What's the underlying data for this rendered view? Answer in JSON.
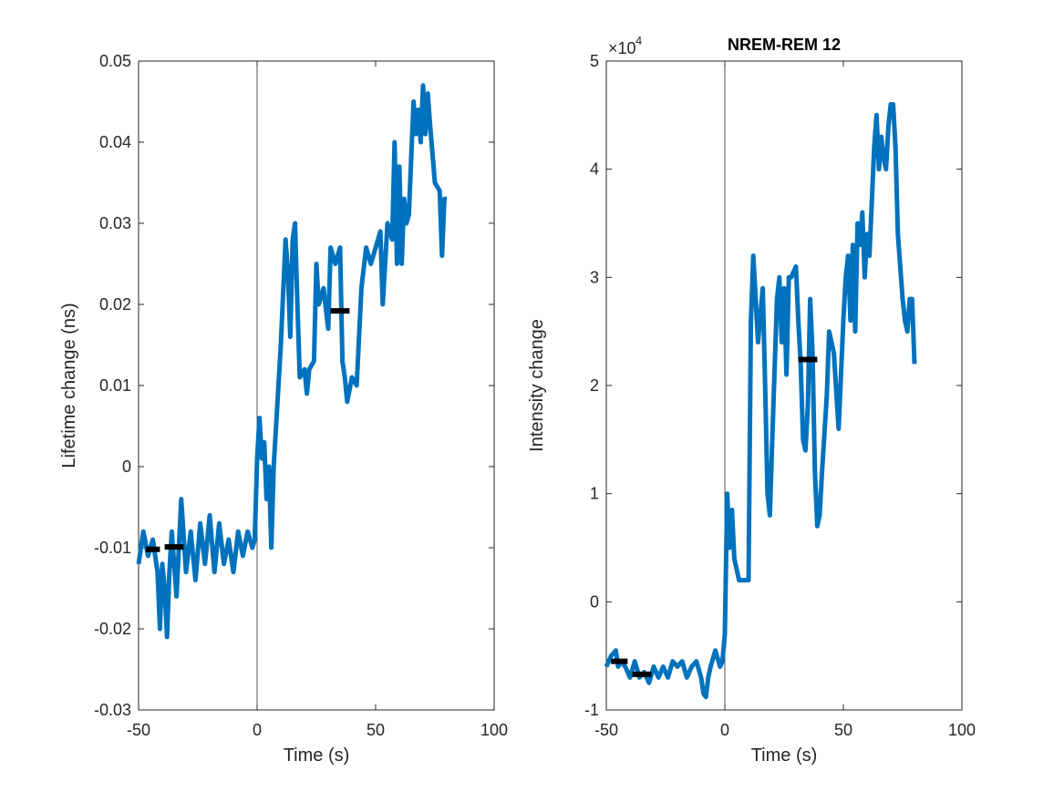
{
  "chart_data": [
    {
      "type": "line",
      "x_label": "Time (s)",
      "y_label": "Lifetime change (ns)",
      "color": "#0072bd",
      "xlim": [
        -50,
        100
      ],
      "xticks": [
        -50,
        0,
        50,
        100
      ],
      "ylim": [
        -0.03,
        0.05
      ],
      "yticks": [
        -0.03,
        -0.02,
        -0.01,
        0,
        0.01,
        0.02,
        0.03,
        0.04,
        0.05
      ],
      "x": [
        -50,
        -48,
        -46,
        -44,
        -42,
        -41,
        -40,
        -39,
        -38,
        -37,
        -36,
        -34,
        -32,
        -30,
        -28,
        -26,
        -24,
        -22,
        -20,
        -18,
        -16,
        -14,
        -12,
        -10,
        -8,
        -6,
        -4,
        -2,
        -1,
        0,
        1,
        2,
        3,
        4,
        5,
        6,
        7,
        8,
        10,
        12,
        13,
        14,
        15,
        16,
        17,
        18,
        20,
        21,
        22,
        24,
        25,
        26,
        28,
        30,
        31,
        33,
        35,
        36,
        37,
        38,
        40,
        42,
        44,
        46,
        48,
        50,
        52,
        53,
        55,
        57,
        58,
        59,
        60,
        61,
        62,
        63,
        64,
        66,
        67,
        68,
        69,
        70,
        71,
        72,
        73,
        75,
        77,
        78,
        79,
        80
      ],
      "values": [
        -0.012,
        -0.008,
        -0.011,
        -0.009,
        -0.013,
        -0.02,
        -0.012,
        -0.015,
        -0.021,
        -0.013,
        -0.008,
        -0.016,
        -0.004,
        -0.013,
        -0.008,
        -0.014,
        -0.007,
        -0.012,
        -0.006,
        -0.013,
        -0.007,
        -0.012,
        -0.009,
        -0.013,
        -0.008,
        -0.011,
        -0.008,
        -0.01,
        -0.009,
        0.001,
        0.006,
        0.001,
        0.003,
        -0.004,
        0.0,
        -0.01,
        0.0,
        0.005,
        0.015,
        0.028,
        0.024,
        0.016,
        0.028,
        0.03,
        0.02,
        0.011,
        0.012,
        0.009,
        0.012,
        0.013,
        0.025,
        0.02,
        0.022,
        0.017,
        0.027,
        0.025,
        0.027,
        0.013,
        0.011,
        0.008,
        0.011,
        0.01,
        0.022,
        0.027,
        0.025,
        0.027,
        0.029,
        0.02,
        0.03,
        0.028,
        0.04,
        0.025,
        0.037,
        0.025,
        0.033,
        0.03,
        0.031,
        0.045,
        0.041,
        0.044,
        0.04,
        0.047,
        0.041,
        0.046,
        0.042,
        0.035,
        0.034,
        0.026,
        0.033,
        0.033
      ],
      "vline": 0,
      "segments": {
        "color": "#000000",
        "x_start": [
          -47,
          -39,
          31
        ],
        "x_end": [
          -41,
          -31,
          39
        ],
        "values": [
          -0.0102,
          -0.0099,
          0.0192
        ]
      }
    },
    {
      "type": "line",
      "title": "NREM-REM 12",
      "x_label": "Time (s)",
      "y_label": "Intensity change",
      "color": "#0072bd",
      "y_multiplier": {
        "base": "×10",
        "exponent": "4"
      },
      "xlim": [
        -50,
        100
      ],
      "xticks": [
        -50,
        0,
        50,
        100
      ],
      "ylim": [
        -1,
        5
      ],
      "yticks": [
        -1,
        0,
        1,
        2,
        3,
        4,
        5
      ],
      "x": [
        -50,
        -48,
        -46,
        -45,
        -44,
        -42,
        -40,
        -38,
        -36,
        -34,
        -32,
        -30,
        -28,
        -26,
        -24,
        -22,
        -20,
        -18,
        -16,
        -14,
        -12,
        -10,
        -9,
        -8,
        -7,
        -6,
        -4,
        -2,
        -1,
        0,
        1,
        2,
        3,
        4,
        6,
        8,
        10,
        11,
        12,
        13,
        14,
        16,
        17,
        18,
        19,
        20,
        22,
        23,
        24,
        25,
        26,
        27,
        28,
        30,
        31,
        32,
        33,
        34,
        35,
        36,
        37,
        38,
        39,
        40,
        41,
        43,
        44,
        46,
        48,
        50,
        51,
        52,
        53,
        54,
        55,
        56,
        57,
        58,
        59,
        60,
        61,
        62,
        63,
        64,
        65,
        66,
        67,
        68,
        69,
        70,
        71,
        72,
        73,
        75,
        76,
        77,
        78,
        79,
        80
      ],
      "values": [
        -0.6,
        -0.5,
        -0.45,
        -0.6,
        -0.55,
        -0.6,
        -0.7,
        -0.55,
        -0.7,
        -0.65,
        -0.75,
        -0.6,
        -0.7,
        -0.6,
        -0.7,
        -0.55,
        -0.6,
        -0.55,
        -0.7,
        -0.6,
        -0.55,
        -0.7,
        -0.85,
        -0.88,
        -0.7,
        -0.6,
        -0.45,
        -0.6,
        -0.55,
        -0.3,
        1.0,
        0.5,
        0.85,
        0.4,
        0.2,
        0.2,
        0.2,
        2.6,
        3.2,
        2.8,
        2.4,
        2.9,
        2.0,
        1.0,
        0.8,
        1.5,
        2.8,
        3.0,
        2.4,
        2.9,
        2.1,
        3.0,
        3.0,
        3.1,
        2.6,
        2.2,
        1.5,
        1.4,
        1.8,
        2.8,
        2.3,
        1.2,
        0.7,
        0.8,
        1.2,
        1.9,
        2.5,
        2.3,
        1.6,
        2.6,
        3.0,
        3.2,
        2.6,
        3.3,
        2.5,
        3.5,
        3.3,
        3.6,
        3.0,
        3.4,
        3.2,
        3.7,
        4.2,
        4.5,
        4.0,
        4.3,
        4.1,
        4.0,
        4.4,
        4.6,
        4.6,
        4.2,
        3.4,
        2.8,
        2.6,
        2.5,
        2.8,
        2.8,
        2.2
      ],
      "vline": 0,
      "segments": {
        "color": "#000000",
        "x_start": [
          -48,
          -39,
          31
        ],
        "x_end": [
          -41,
          -31,
          39
        ],
        "values": [
          -0.55,
          -0.67,
          2.24
        ]
      }
    }
  ]
}
